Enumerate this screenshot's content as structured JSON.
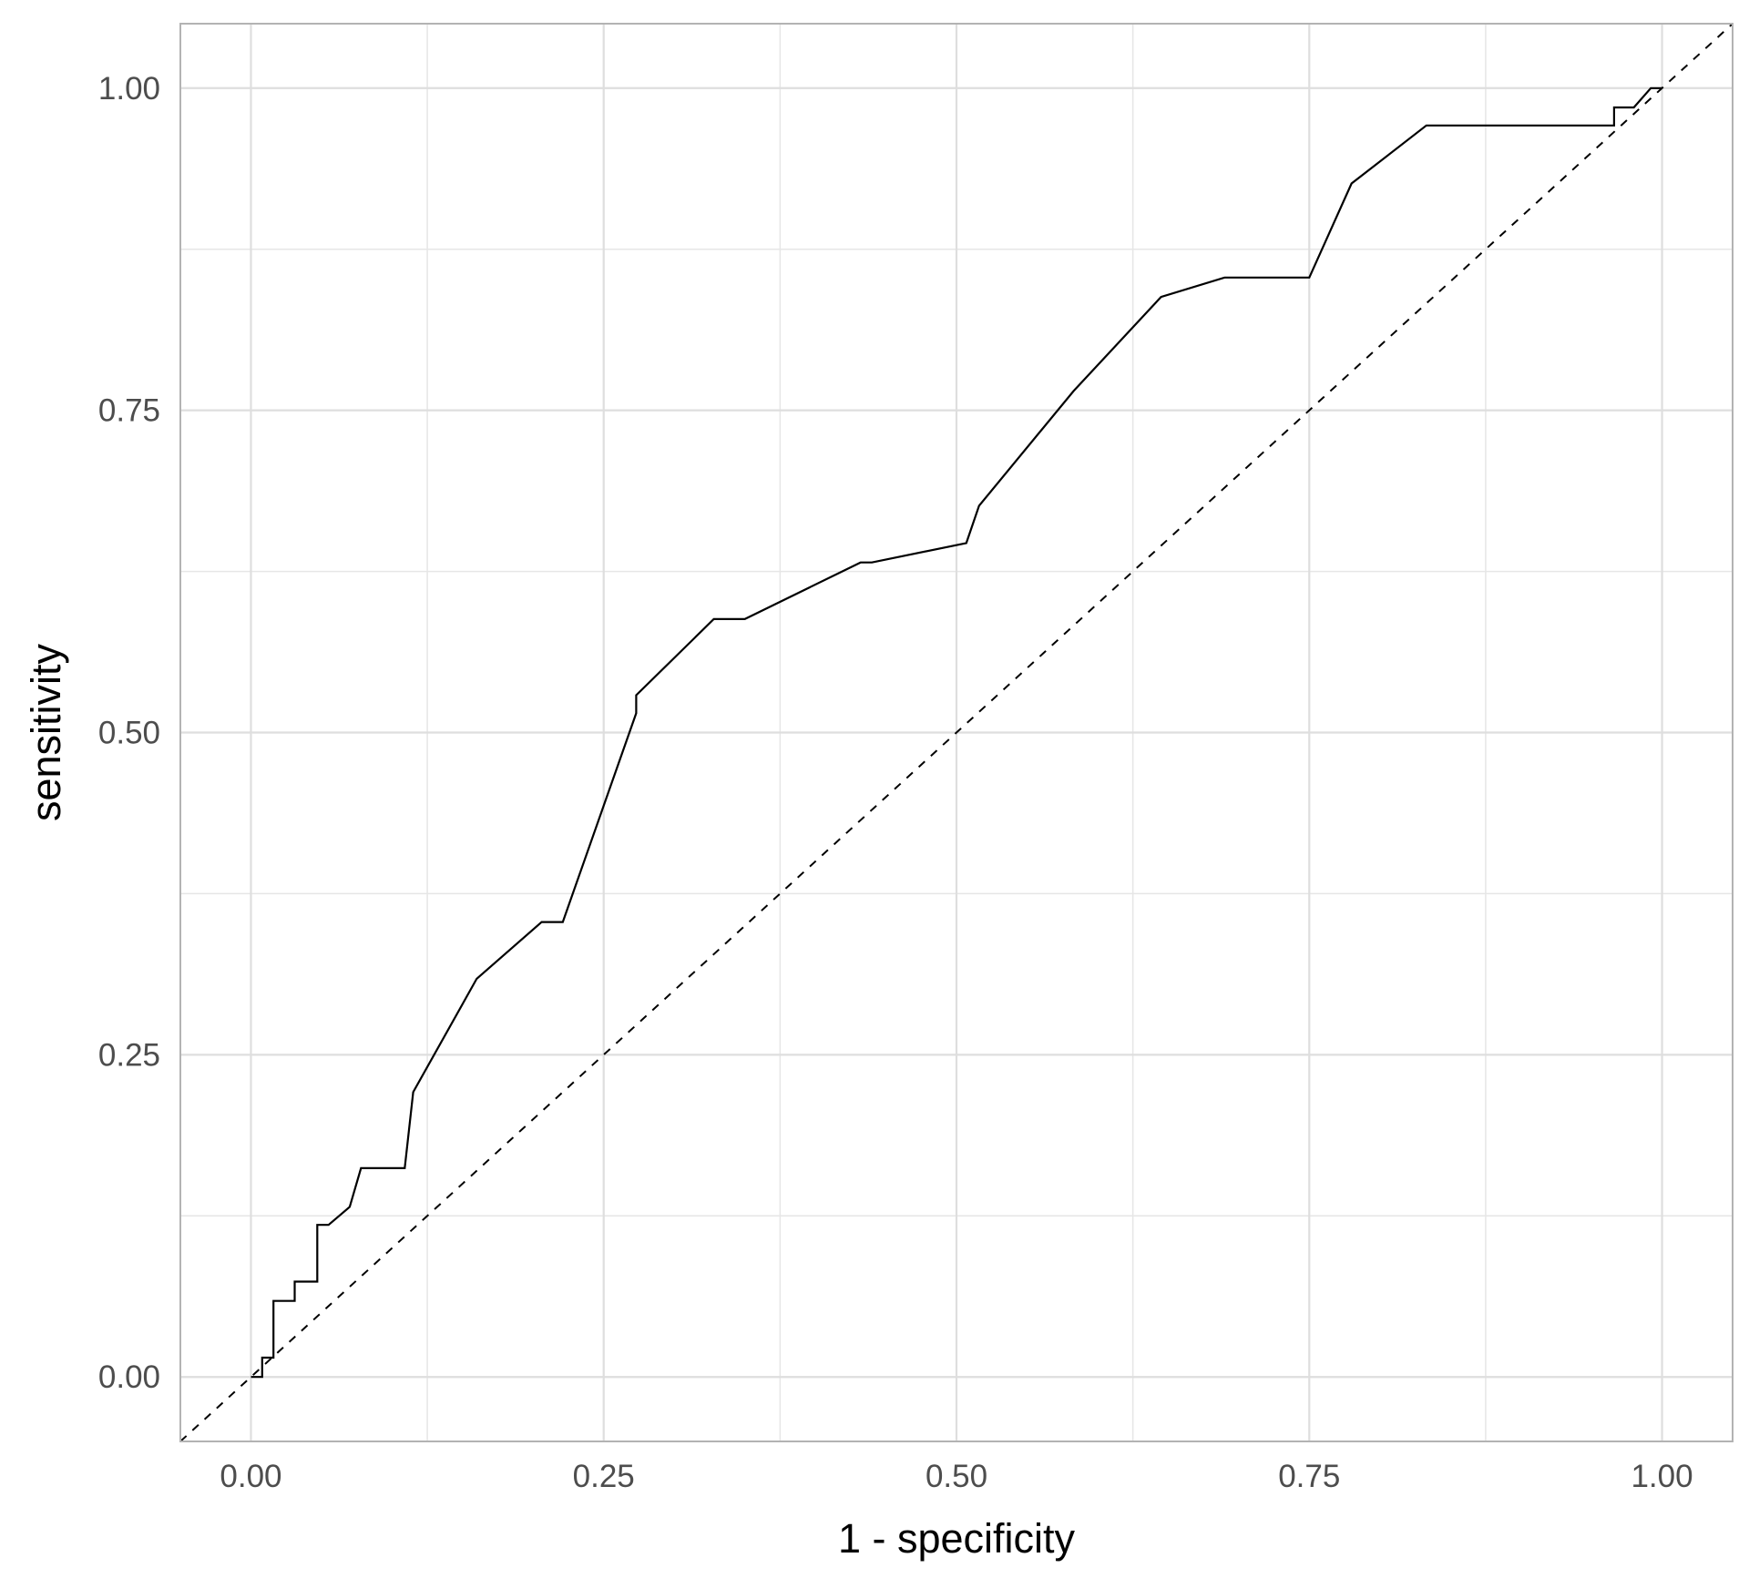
{
  "chart_data": {
    "type": "line",
    "xlabel": "1 - specificity",
    "ylabel": "sensitivity",
    "xlim": [
      -0.05,
      1.05
    ],
    "ylim": [
      -0.05,
      1.05
    ],
    "x_ticks": [
      0,
      0.25,
      0.5,
      0.75,
      1
    ],
    "x_tick_labels": [
      "0.00",
      "0.25",
      "0.50",
      "0.75",
      "1.00"
    ],
    "y_ticks": [
      0,
      0.25,
      0.5,
      0.75,
      1
    ],
    "y_tick_labels": [
      "0.00",
      "0.25",
      "0.50",
      "0.75",
      "1.00"
    ],
    "grid": true,
    "reference_line": {
      "x": [
        -0.05,
        1.05
      ],
      "y": [
        -0.05,
        1.05
      ],
      "style": "dashed",
      "color": "#000000"
    },
    "series": [
      {
        "color": "#000000",
        "points": [
          [
            0.0,
            0.0
          ],
          [
            0.008,
            0.0
          ],
          [
            0.008,
            0.015
          ],
          [
            0.016,
            0.015
          ],
          [
            0.016,
            0.059
          ],
          [
            0.031,
            0.059
          ],
          [
            0.031,
            0.074
          ],
          [
            0.047,
            0.074
          ],
          [
            0.047,
            0.118
          ],
          [
            0.055,
            0.118
          ],
          [
            0.07,
            0.132
          ],
          [
            0.078,
            0.162
          ],
          [
            0.109,
            0.162
          ],
          [
            0.115,
            0.221
          ],
          [
            0.16,
            0.309
          ],
          [
            0.206,
            0.353
          ],
          [
            0.221,
            0.353
          ],
          [
            0.273,
            0.515
          ],
          [
            0.273,
            0.529
          ],
          [
            0.328,
            0.588
          ],
          [
            0.35,
            0.588
          ],
          [
            0.432,
            0.632
          ],
          [
            0.44,
            0.632
          ],
          [
            0.507,
            0.647
          ],
          [
            0.516,
            0.676
          ],
          [
            0.583,
            0.765
          ],
          [
            0.645,
            0.838
          ],
          [
            0.69,
            0.853
          ],
          [
            0.75,
            0.853
          ],
          [
            0.78,
            0.926
          ],
          [
            0.833,
            0.971
          ],
          [
            0.966,
            0.971
          ],
          [
            0.966,
            0.985
          ],
          [
            0.98,
            0.985
          ],
          [
            0.992,
            1.0
          ],
          [
            1.0,
            1.0
          ]
        ]
      }
    ]
  }
}
